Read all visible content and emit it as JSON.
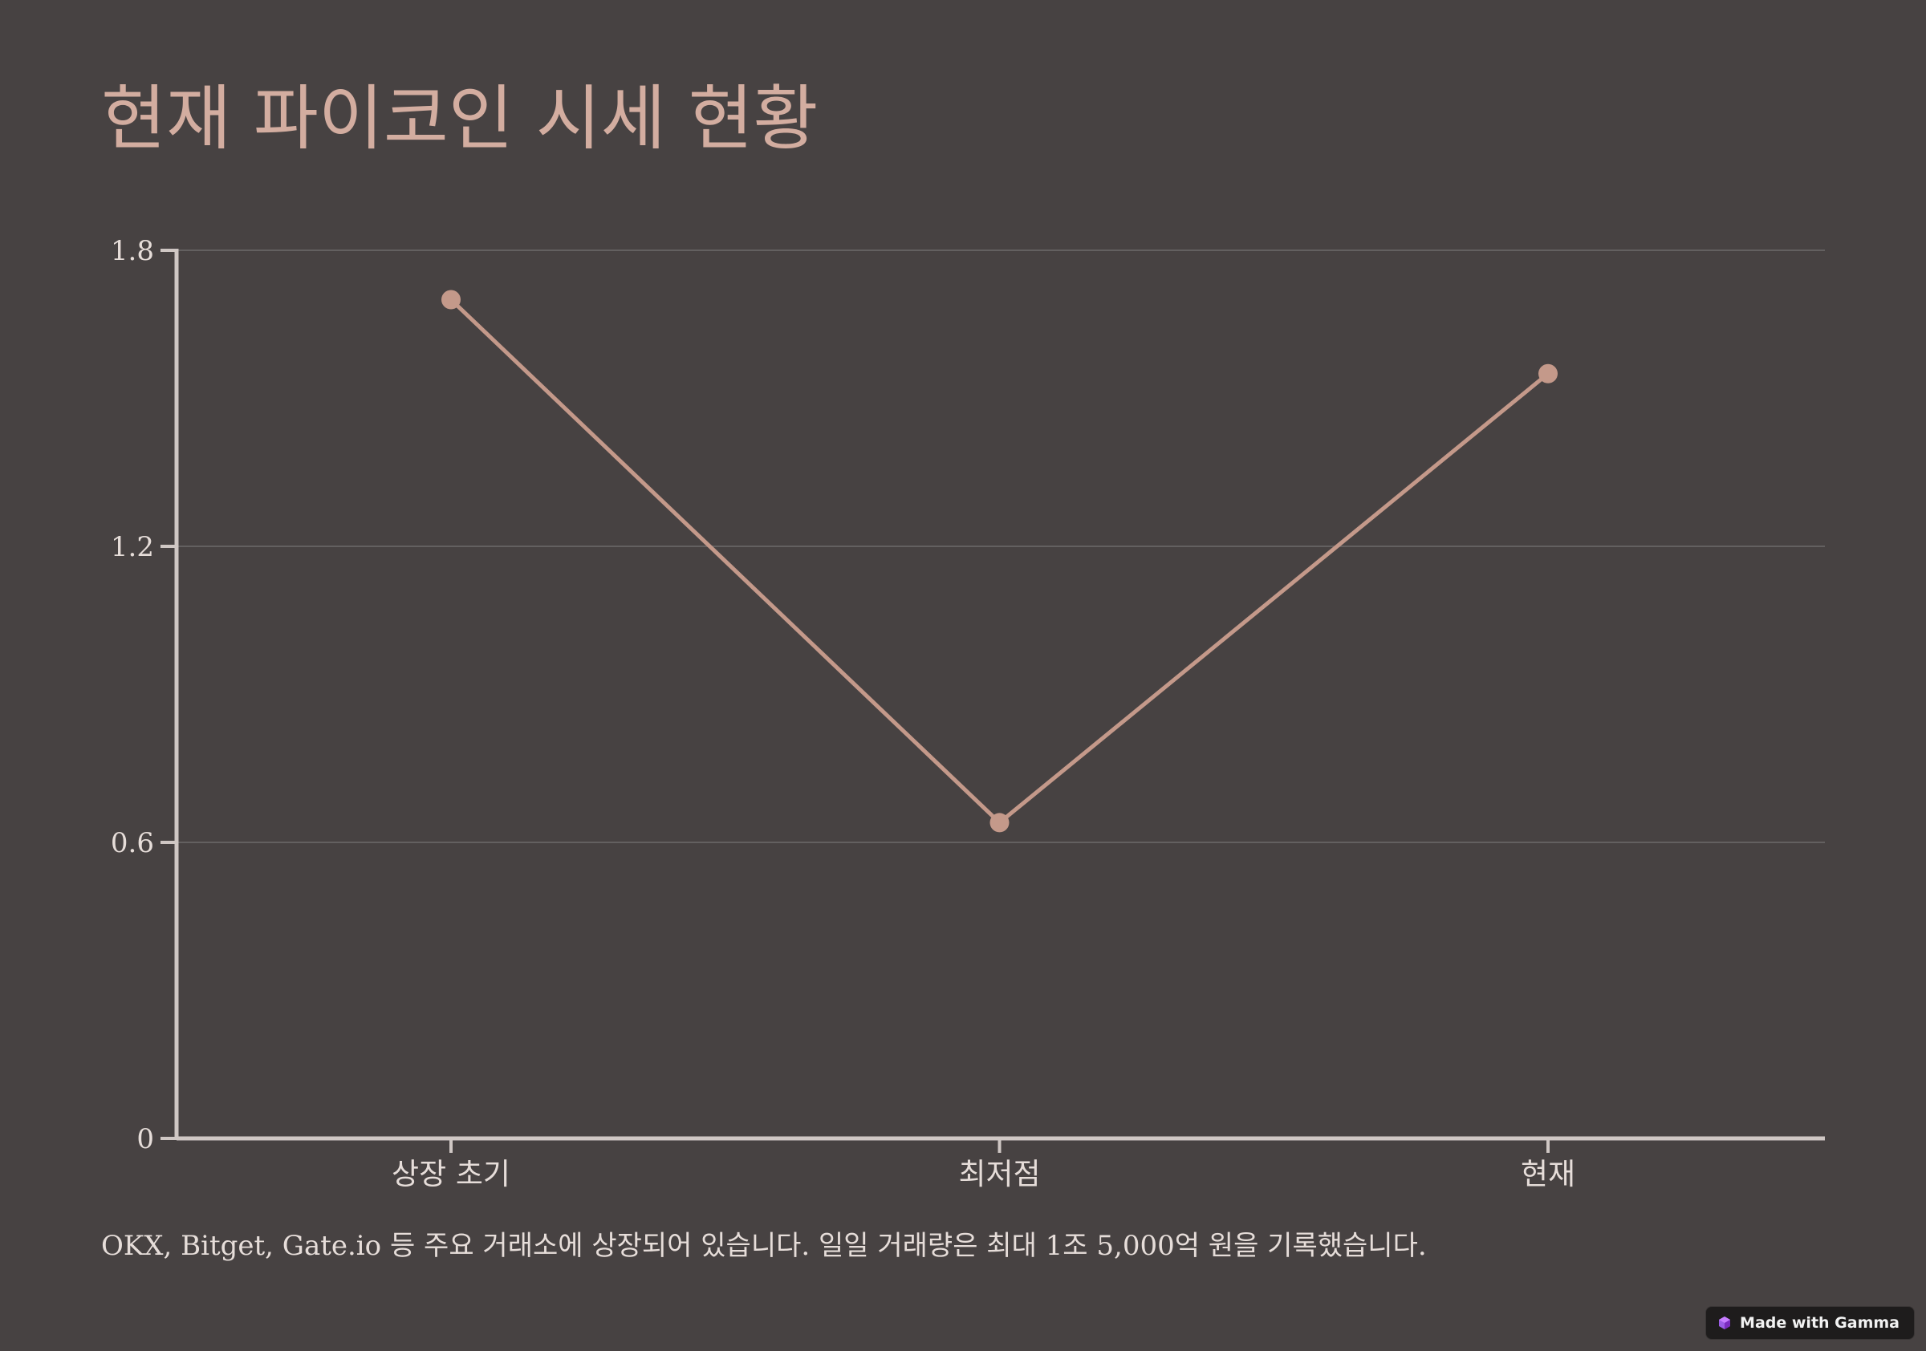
{
  "title": "현재 파이코인 시세 현황",
  "caption": "OKX, Bitget, Gate.io 등 주요 거래소에 상장되어 있습니다. 일일 거래량은 최대 1조 5,000억 원을 기록했습니다.",
  "badge": {
    "label": "Made with Gamma",
    "icon": "gamma-logo-icon"
  },
  "colors": {
    "background": "#474242",
    "accent": "#c4998a",
    "title": "#d3ada0",
    "axis": "#cfc7c4",
    "gridline": "#636060",
    "text": "#e6ddd9"
  },
  "chart_data": {
    "type": "line",
    "categories": [
      "상장 초기",
      "최저점",
      "현재"
    ],
    "series": [
      {
        "values": [
          1.7,
          0.64,
          1.55
        ]
      }
    ],
    "yticks": [
      "1.8",
      "1.2",
      "0.6",
      "0"
    ],
    "ylim": [
      0,
      1.8
    ],
    "grid": true,
    "legend": "none",
    "xlabel": "",
    "ylabel": ""
  }
}
